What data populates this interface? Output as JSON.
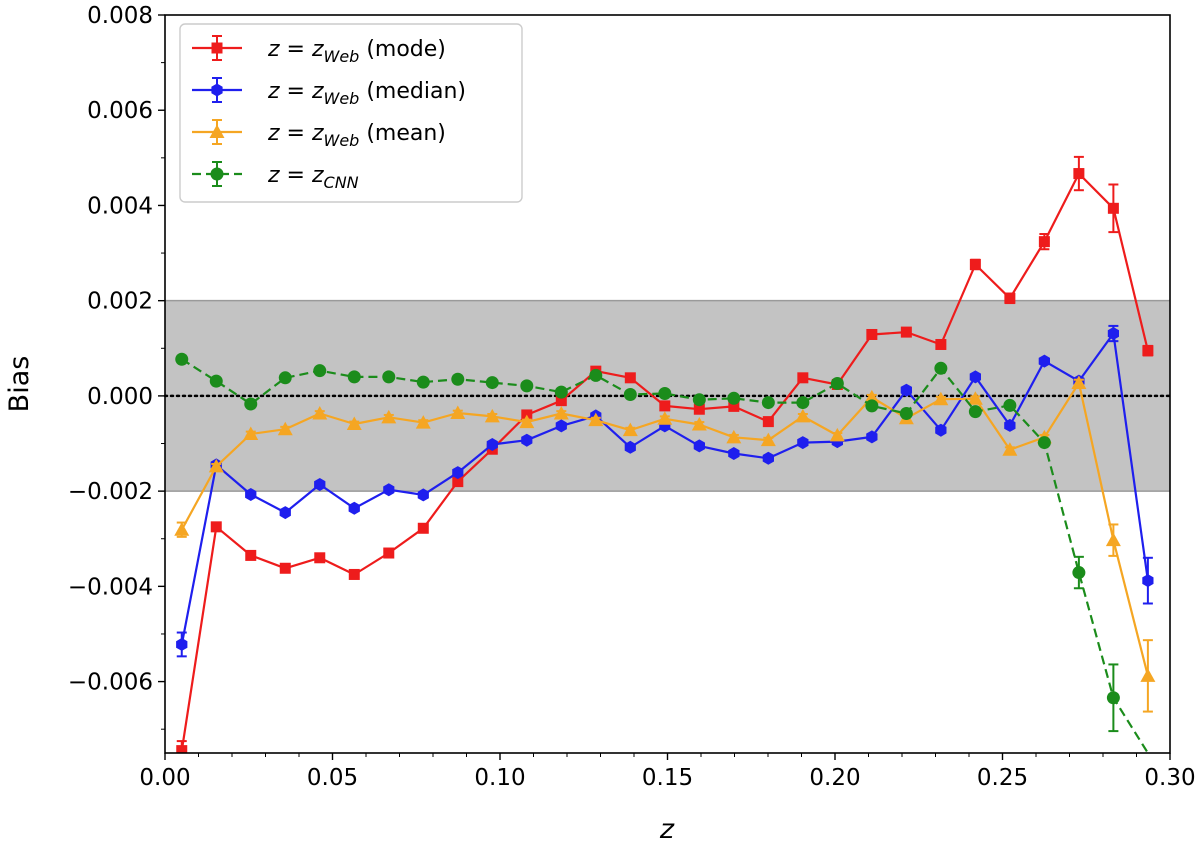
{
  "chart_data": {
    "type": "line",
    "title": "",
    "xlabel": "z",
    "ylabel": "Bias",
    "xlim": [
      0.0,
      0.3
    ],
    "ylim": [
      -0.0075,
      0.008
    ],
    "x_ticks": [
      0.0,
      0.05,
      0.1,
      0.15,
      0.2,
      0.25,
      0.3
    ],
    "x_tick_labels": [
      "0.00",
      "0.05",
      "0.10",
      "0.15",
      "0.20",
      "0.25",
      "0.30"
    ],
    "y_ticks": [
      -0.006,
      -0.004,
      -0.002,
      0.0,
      0.002,
      0.004,
      0.006,
      0.008
    ],
    "y_tick_labels": [
      "−0.006",
      "−0.004",
      "−0.002",
      "0.000",
      "0.002",
      "0.004",
      "0.006",
      "0.008"
    ],
    "shaded_band": {
      "y_min": -0.002,
      "y_max": 0.002,
      "color": "#c3c3c3"
    },
    "reference_line": {
      "y": 0.0,
      "style": "dotted",
      "color": "#000000"
    },
    "legend_position": "upper-left",
    "x": [
      0.005,
      0.0153,
      0.0256,
      0.0359,
      0.0462,
      0.0565,
      0.0668,
      0.0771,
      0.0874,
      0.0977,
      0.108,
      0.1183,
      0.1286,
      0.1389,
      0.1492,
      0.1595,
      0.1698,
      0.1801,
      0.1904,
      0.2007,
      0.211,
      0.2213,
      0.2316,
      0.2419,
      0.2522,
      0.2625,
      0.2728,
      0.2831,
      0.2934
    ],
    "series": [
      {
        "name": "z = z_Web (mode)",
        "label_prefix": "z = z",
        "label_sub": "Web",
        "label_suffix": " (mode)",
        "color": "#ee1c1c",
        "marker": "square",
        "linestyle": "solid",
        "values": [
          -0.00745,
          -0.00275,
          -0.00335,
          -0.00362,
          -0.0034,
          -0.00375,
          -0.0033,
          -0.00278,
          -0.0018,
          -0.00112,
          -0.0004,
          -0.0001,
          0.00052,
          0.00038,
          -0.00021,
          -0.00028,
          -0.00022,
          -0.00054,
          0.00038,
          0.00024,
          0.00129,
          0.00134,
          0.00108,
          0.00276,
          0.00205,
          0.00324,
          0.00467,
          0.00394,
          0.00095
        ],
        "errors": [
          0.0002,
          5e-05,
          5e-05,
          5e-05,
          5e-05,
          5e-05,
          5e-05,
          5e-05,
          5e-05,
          5e-05,
          5e-05,
          5e-05,
          5e-05,
          5e-05,
          5e-05,
          5e-05,
          5e-05,
          5e-05,
          5e-05,
          5e-05,
          5e-05,
          5e-05,
          5e-05,
          0.0001,
          0.0001,
          0.00016,
          0.00035,
          0.0005,
          0.0001
        ]
      },
      {
        "name": "z = z_Web (median)",
        "label_prefix": "z = z",
        "label_sub": "Web",
        "label_suffix": " (median)",
        "color": "#1f1fee",
        "marker": "hexagon",
        "linestyle": "solid",
        "values": [
          -0.00522,
          -0.00145,
          -0.00207,
          -0.00245,
          -0.00186,
          -0.00236,
          -0.00197,
          -0.00208,
          -0.00161,
          -0.00102,
          -0.00093,
          -0.00063,
          -0.00042,
          -0.00108,
          -0.00063,
          -0.00105,
          -0.00121,
          -0.00131,
          -0.00098,
          -0.00096,
          -0.00086,
          0.00012,
          -0.00072,
          0.0004,
          -0.00062,
          0.00073,
          0.00031,
          0.00131,
          -0.00388
        ],
        "errors": [
          0.00025,
          5e-05,
          5e-05,
          5e-05,
          5e-05,
          5e-05,
          5e-05,
          5e-05,
          5e-05,
          5e-05,
          5e-05,
          5e-05,
          5e-05,
          5e-05,
          5e-05,
          5e-05,
          5e-05,
          5e-05,
          5e-05,
          5e-05,
          5e-05,
          5e-05,
          5e-05,
          5e-05,
          5e-05,
          5e-05,
          5e-05,
          0.00016,
          0.00048
        ]
      },
      {
        "name": "z = z_Web (mean)",
        "label_prefix": "z = z",
        "label_sub": "Web",
        "label_suffix": " (mean)",
        "color": "#f5a623",
        "marker": "triangle",
        "linestyle": "solid",
        "values": [
          -0.00281,
          -0.00148,
          -0.0008,
          -0.0007,
          -0.00037,
          -0.00059,
          -0.00045,
          -0.00056,
          -0.00036,
          -0.00043,
          -0.00055,
          -0.00037,
          -0.00051,
          -0.00072,
          -0.00048,
          -0.0006,
          -0.00087,
          -0.00093,
          -0.00043,
          -0.00083,
          -3e-05,
          -0.00047,
          -7e-05,
          -6e-05,
          -0.00113,
          -0.00087,
          0.00027,
          -0.00303,
          -0.00588
        ],
        "errors": [
          0.00015,
          5e-05,
          5e-05,
          5e-05,
          5e-05,
          5e-05,
          5e-05,
          5e-05,
          5e-05,
          5e-05,
          5e-05,
          5e-05,
          5e-05,
          5e-05,
          5e-05,
          5e-05,
          5e-05,
          5e-05,
          5e-05,
          5e-05,
          5e-05,
          5e-05,
          5e-05,
          5e-05,
          5e-05,
          5e-05,
          7e-05,
          0.00033,
          0.00075
        ]
      },
      {
        "name": "z = z_CNN",
        "label_prefix": "z = z",
        "label_sub": "CNN",
        "label_suffix": "",
        "color": "#1b8c1b",
        "marker": "circle",
        "linestyle": "dashed",
        "values": [
          0.00077,
          0.00031,
          -0.00017,
          0.00038,
          0.00053,
          0.0004,
          0.0004,
          0.00029,
          0.00035,
          0.00028,
          0.00021,
          8e-05,
          0.00043,
          3e-05,
          5e-05,
          -8e-05,
          -5e-05,
          -0.00014,
          -0.00014,
          0.00026,
          -0.00021,
          -0.00037,
          0.00058,
          -0.00033,
          -0.0002,
          -0.00098,
          -0.00371,
          -0.00634,
          -0.0075
        ],
        "errors": [
          5e-05,
          5e-05,
          5e-05,
          5e-05,
          5e-05,
          5e-05,
          5e-05,
          5e-05,
          5e-05,
          5e-05,
          5e-05,
          5e-05,
          5e-05,
          5e-05,
          5e-05,
          5e-05,
          5e-05,
          5e-05,
          5e-05,
          5e-05,
          5e-05,
          5e-05,
          5e-05,
          5e-05,
          5e-05,
          5e-05,
          0.00033,
          0.0007,
          0.0
        ],
        "trailing_segment_only": true
      }
    ]
  }
}
